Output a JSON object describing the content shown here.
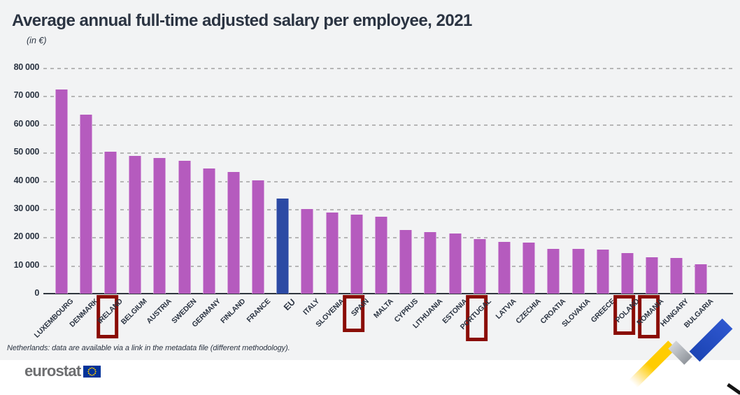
{
  "header": {
    "title": "Average annual full-time adjusted salary per employee, 2021",
    "subtitle": "(in €)"
  },
  "chart_data": {
    "type": "bar",
    "title": "Average annual full-time adjusted salary per employee, 2021",
    "unit": "(in €)",
    "categories": [
      "LUXEMBOURG",
      "DENMARK",
      "IRELAND",
      "BELGIUM",
      "AUSTRIA",
      "SWEDEN",
      "GERMANY",
      "FINLAND",
      "FRANCE",
      "EU",
      "ITALY",
      "SLOVENIA",
      "SPAIN",
      "MALTA",
      "CYPRUS",
      "LITHUANIA",
      "ESTONIA",
      "PORTUGAL",
      "LATVIA",
      "CZECHIA",
      "CROATIA",
      "SLOVAKIA",
      "GREECE",
      "POLAND",
      "ROMANIA",
      "HUNGARY",
      "BULGARIA"
    ],
    "values": [
      72300,
      63300,
      50300,
      48700,
      48100,
      47000,
      44400,
      43100,
      40200,
      33600,
      29900,
      28700,
      28100,
      27200,
      22600,
      21800,
      21400,
      19400,
      18400,
      18100,
      15900,
      15900,
      15700,
      14300,
      12800,
      12600,
      10400
    ],
    "emphasized_category": "EU",
    "highlighted_categories": [
      "IRELAND",
      "SPAIN",
      "PORTUGAL",
      "POLAND",
      "ROMANIA"
    ],
    "ylim": [
      0,
      80000
    ],
    "ytick_step": 10000,
    "ytick_labels": [
      "80 000",
      "70 000",
      "60 000",
      "50 000",
      "40 000",
      "30 000",
      "20 000",
      "10 000",
      "0"
    ],
    "grid": "horizontal-dashed",
    "legend": "none",
    "xlabel": "",
    "ylabel": "",
    "colors": {
      "bar": "#b55bbe",
      "eu_bar": "#2c4aa4",
      "highlight_box": "#8a0c05",
      "axis_text": "#2b3442",
      "gridline": "#ababab",
      "background": "#f2f3f4"
    }
  },
  "footnote": "Netherlands: data are available via a link in the metadata file (different methodology).",
  "logo": {
    "text": "eurostat"
  },
  "decor": {
    "ribbon_colors": {
      "yellow": "#ffcc00",
      "gray": "#b6bac0",
      "blue": "#2a50c0",
      "black": "#141414"
    }
  }
}
